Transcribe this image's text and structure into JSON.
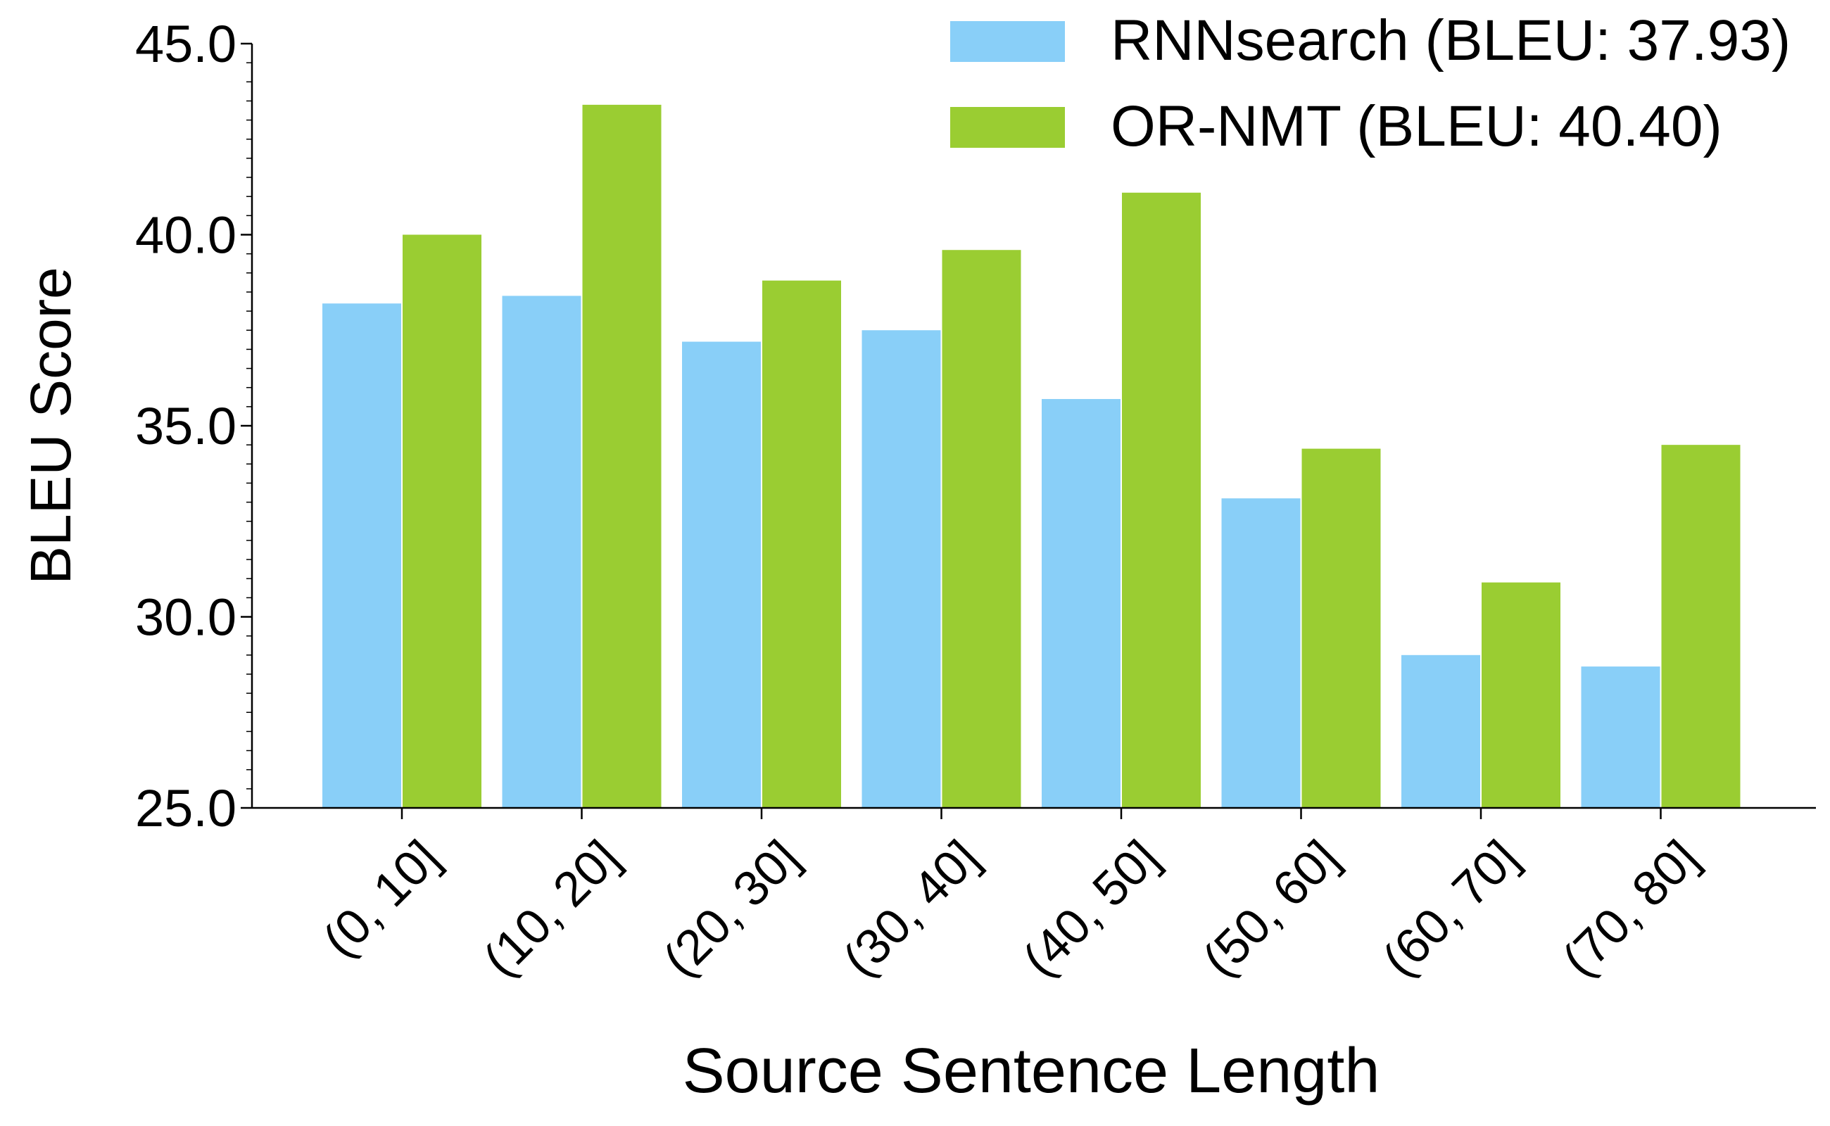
{
  "colors": {
    "rnnsearch": "#89CFF8",
    "ornmt": "#9ACD32",
    "axis": "#000000"
  },
  "chart_data": {
    "type": "bar",
    "title": "",
    "xlabel": "Source Sentence Length",
    "ylabel": "BLEU Score",
    "ylim": [
      25.0,
      45.0
    ],
    "yticks": [
      "25.0",
      "30.0",
      "35.0",
      "40.0",
      "45.0"
    ],
    "ytick_values": [
      25,
      30,
      35,
      40,
      45
    ],
    "y_minor_step": 0.5,
    "grid": false,
    "legend_position": "top-right",
    "categories": [
      "(0, 10]",
      "(10, 20]",
      "(20, 30]",
      "(30, 40]",
      "(40, 50]",
      "(50, 60]",
      "(60, 70]",
      "(70, 80]"
    ],
    "series": [
      {
        "name": "RNNsearch (BLEU: 37.93)",
        "color": "#89CFF8",
        "values": [
          38.2,
          38.4,
          37.2,
          37.5,
          35.7,
          33.1,
          29.0,
          28.7
        ]
      },
      {
        "name": "OR-NMT (BLEU: 40.40)",
        "color": "#9ACD32",
        "values": [
          40.0,
          43.4,
          38.8,
          39.6,
          41.1,
          34.4,
          30.9,
          34.5
        ]
      }
    ]
  }
}
